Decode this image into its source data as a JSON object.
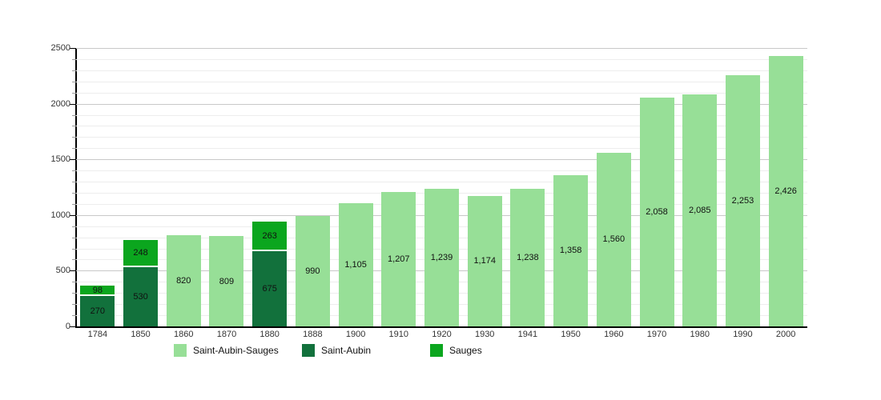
{
  "chart_data": {
    "type": "bar",
    "stacked": true,
    "title": "",
    "xlabel": "",
    "ylabel": "",
    "ylim": [
      0,
      2500
    ],
    "ytick_major": 500,
    "ytick_minor": 100,
    "y_tick_labels": [
      "0",
      "500",
      "1000",
      "1500",
      "2000",
      "2500"
    ],
    "grid": true,
    "legend_position": "bottom",
    "background_color": "#ffffff",
    "categories": [
      "1784",
      "1850",
      "1860",
      "1870",
      "1880",
      "1888",
      "1900",
      "1910",
      "1920",
      "1930",
      "1941",
      "1950",
      "1960",
      "1970",
      "1980",
      "1990",
      "2000"
    ],
    "series": [
      {
        "name": "Saint-Aubin-Sauges",
        "color": "#97df97",
        "stack_level": 0,
        "values": [
          null,
          null,
          820,
          809,
          null,
          990,
          1105,
          1207,
          1239,
          1174,
          1238,
          1358,
          1560,
          2058,
          2085,
          2253,
          2426
        ]
      },
      {
        "name": "Saint-Aubin",
        "color": "#12713c",
        "stack_level": 0,
        "values": [
          270,
          530,
          null,
          null,
          675,
          null,
          null,
          null,
          null,
          null,
          null,
          null,
          null,
          null,
          null,
          null,
          null
        ]
      },
      {
        "name": "Sauges",
        "color": "#0ba61e",
        "stack_level": 1,
        "values": [
          98,
          248,
          null,
          null,
          263,
          null,
          null,
          null,
          null,
          null,
          null,
          null,
          null,
          null,
          null,
          null,
          null
        ]
      }
    ],
    "bar_value_labels": [
      "270",
      "98",
      "530",
      "248",
      "820",
      "809",
      "675",
      "263",
      "990",
      "1,105",
      "1,207",
      "1,239",
      "1,174",
      "1,238",
      "1,358",
      "1,560",
      "2,058",
      "2,085",
      "2,253",
      "2,426"
    ]
  }
}
